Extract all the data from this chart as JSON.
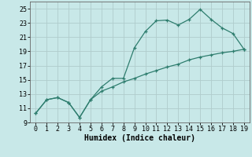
{
  "xlabel": "Humidex (Indice chaleur)",
  "x": [
    0,
    1,
    2,
    3,
    4,
    5,
    6,
    7,
    8,
    9,
    10,
    11,
    12,
    13,
    14,
    15,
    16,
    17,
    18,
    19
  ],
  "y_upper": [
    10.3,
    12.2,
    12.5,
    11.8,
    9.7,
    12.2,
    14.0,
    15.2,
    15.2,
    19.5,
    21.8,
    23.3,
    23.4,
    22.7,
    23.5,
    24.9,
    23.5,
    22.3,
    21.5,
    19.3
  ],
  "y_lower": [
    10.3,
    12.2,
    12.5,
    11.8,
    9.7,
    12.2,
    13.4,
    14.0,
    14.7,
    15.2,
    15.8,
    16.3,
    16.8,
    17.2,
    17.8,
    18.2,
    18.5,
    18.8,
    19.0,
    19.3
  ],
  "line_color": "#2e7d6e",
  "bg_color": "#c8e8e8",
  "grid_major_color": "#b0cccc",
  "grid_minor_color": "#c0d8d8",
  "ylim": [
    9,
    26
  ],
  "xlim": [
    -0.5,
    19.5
  ],
  "yticks": [
    9,
    11,
    13,
    15,
    17,
    19,
    21,
    23,
    25
  ],
  "xticks": [
    0,
    1,
    2,
    3,
    4,
    5,
    6,
    7,
    8,
    9,
    10,
    11,
    12,
    13,
    14,
    15,
    16,
    17,
    18,
    19
  ],
  "tick_fontsize": 6,
  "xlabel_fontsize": 7
}
